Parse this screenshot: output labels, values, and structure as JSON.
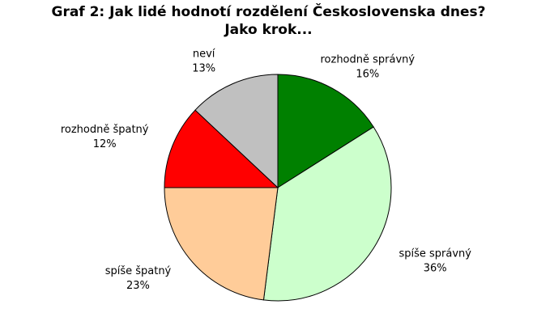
{
  "chart_data": {
    "type": "pie",
    "title": "Graf 2: Jak lidé hodnotí rozdělení Československa dnes? Jako krok...",
    "categories": [
      "rozhodně správný",
      "spíše správný",
      "spíše špatný",
      "rozhodně špatný",
      "neví"
    ],
    "values": [
      16,
      36,
      23,
      12,
      13
    ],
    "value_labels": [
      "16%",
      "36%",
      "23%",
      "12%",
      "13%"
    ],
    "colors": [
      "#008000",
      "#ccffcc",
      "#ffcc99",
      "#ff0000",
      "#c0c0c0"
    ]
  }
}
